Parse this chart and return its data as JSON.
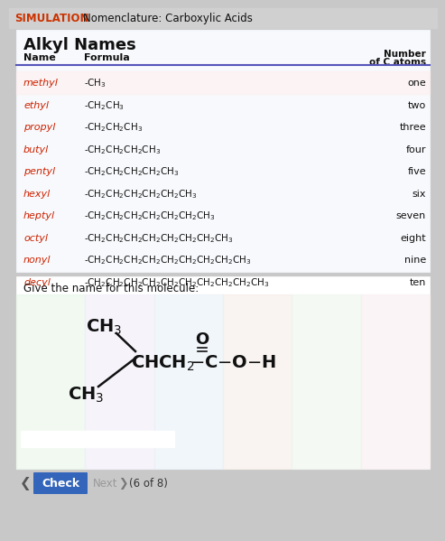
{
  "title_sim": "SIMULATION",
  "title_main": "Nomenclature: Carboxylic Acids",
  "sim_color": "#cc3300",
  "names": [
    "methyl",
    "ethyl",
    "propyl",
    "butyl",
    "pentyl",
    "hexyl",
    "heptyl",
    "octyl",
    "nonyl",
    "decyl"
  ],
  "name_color": "#cc2200",
  "formulas_display": [
    "-CH$_3$",
    "-CH$_2$CH$_3$",
    "-CH$_2$CH$_2$CH$_3$",
    "-CH$_2$CH$_2$CH$_2$CH$_3$",
    "-CH$_2$CH$_2$CH$_2$CH$_2$CH$_3$",
    "-CH$_2$CH$_2$CH$_2$CH$_2$CH$_2$CH$_3$",
    "-CH$_2$CH$_2$CH$_2$CH$_2$CH$_2$CH$_2$CH$_3$",
    "-CH$_2$CH$_2$CH$_2$CH$_2$CH$_2$CH$_2$CH$_2$CH$_3$",
    "-CH$_2$CH$_2$CH$_2$CH$_2$CH$_2$CH$_2$CH$_2$CH$_2$CH$_3$",
    "-CH$_2$CH$_2$CH$_2$CH$_2$CH$_2$CH$_2$CH$_2$CH$_2$CH$_2$CH$_3$"
  ],
  "counts": [
    "one",
    "two",
    "three",
    "four",
    "five",
    "six",
    "seven",
    "eight",
    "nine",
    "ten"
  ],
  "molecule_label": "Give the name for this molecule:",
  "bottom_label": "(6 of 8)",
  "check_btn": "Check",
  "next_btn": "Next",
  "outer_bg": "#c8c8c8",
  "white": "#ffffff",
  "blue_btn": "#3366bb",
  "table_bg": "#f5f5f5",
  "header_line_color": "#4444aa"
}
